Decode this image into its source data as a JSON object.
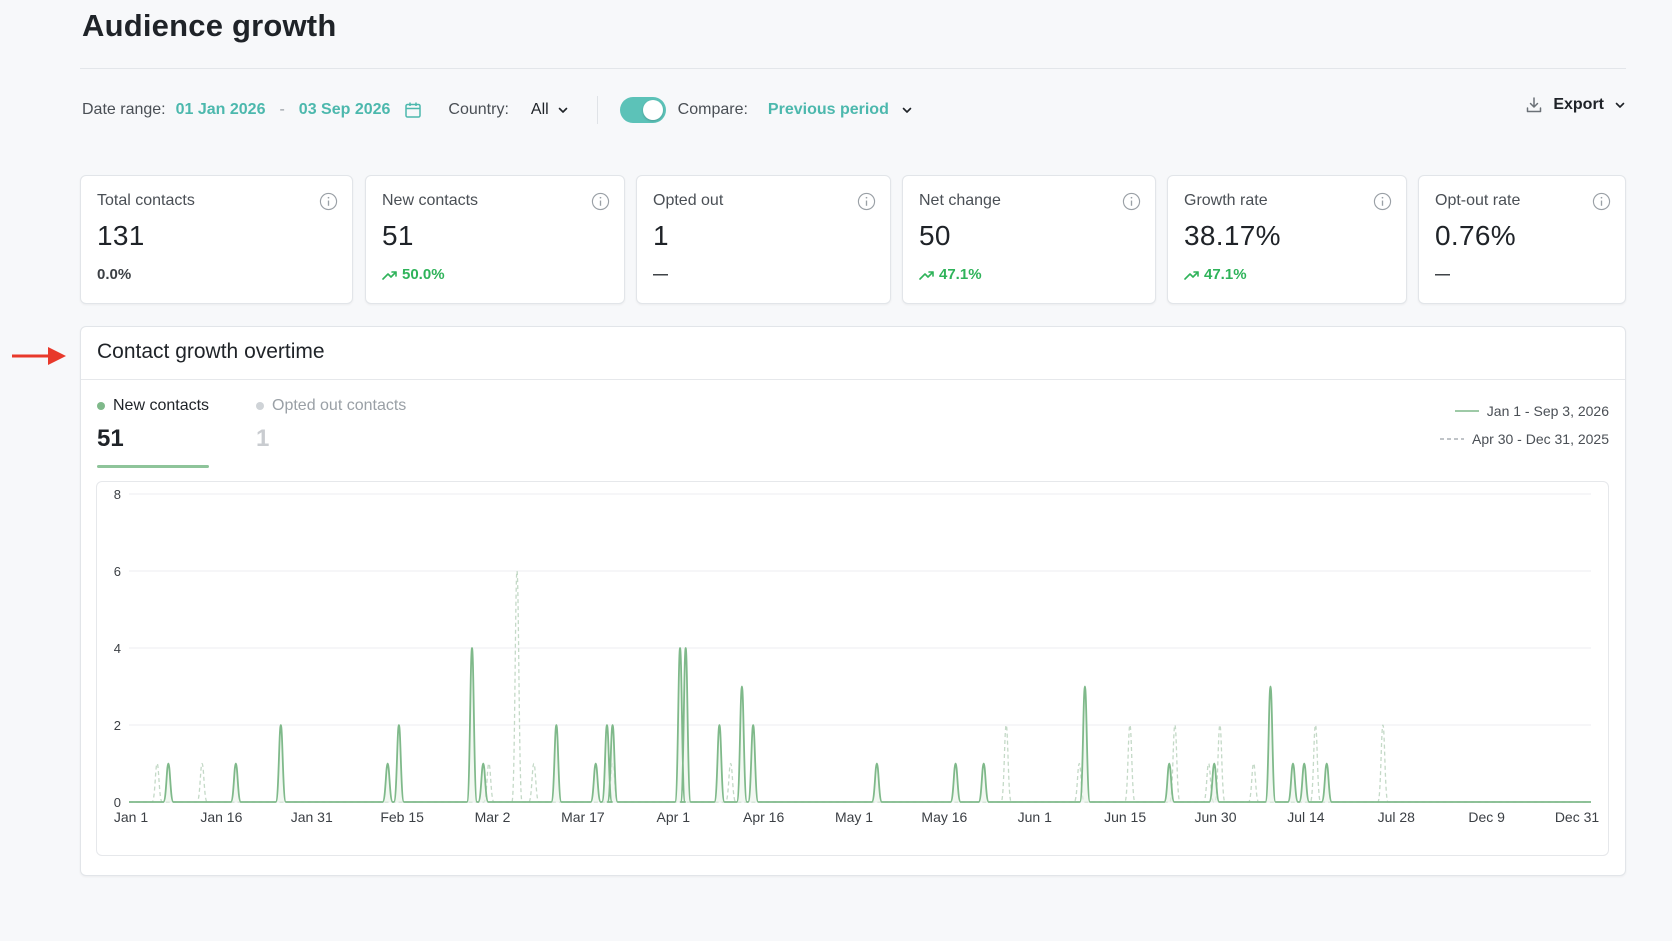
{
  "page": {
    "title": "Audience growth"
  },
  "filters": {
    "date_range_label": "Date range:",
    "start_date": "01 Jan 2026",
    "separator": "-",
    "end_date": "03 Sep 2026",
    "country_label": "Country:",
    "country_value": "All",
    "compare_enabled": true,
    "compare_label": "Compare:",
    "compare_value": "Previous period",
    "export_label": "Export"
  },
  "stats": [
    {
      "label": "Total contacts",
      "value": "131",
      "delta": "0.0%",
      "trend": "neutral"
    },
    {
      "label": "New contacts",
      "value": "51",
      "delta": "50.0%",
      "trend": "up"
    },
    {
      "label": "Opted out",
      "value": "1",
      "delta": "—",
      "trend": "none"
    },
    {
      "label": "Net change",
      "value": "50",
      "delta": "47.1%",
      "trend": "up"
    },
    {
      "label": "Growth rate",
      "value": "38.17%",
      "delta": "47.1%",
      "trend": "up"
    },
    {
      "label": "Opt-out rate",
      "value": "0.76%",
      "delta": "—",
      "trend": "none"
    }
  ],
  "chart_section": {
    "title": "Contact growth overtime",
    "tabs": [
      {
        "label": "New contacts",
        "value": "51",
        "active": true
      },
      {
        "label": "Opted out contacts",
        "value": "1",
        "active": false
      }
    ],
    "period_legend": {
      "current": "Jan 1 - Sep 3, 2026",
      "previous": "Apr 30 - Dec 31, 2025"
    }
  },
  "colors": {
    "accent": "#4cb8ad",
    "toggle": "#5cc2b8",
    "up": "#2fb35a",
    "current_line": "#7fb98a",
    "previous_line": "#c4d9c7",
    "arrow": "#e8392b"
  },
  "icons": {
    "calendar": "calendar-icon",
    "chevron": "chevron-down-icon",
    "download": "download-icon",
    "info": "info-icon",
    "trend_up": "trend-up-icon",
    "annotation_arrow": "arrow-right-icon"
  },
  "chart_data": {
    "type": "line",
    "ylim": [
      0,
      8
    ],
    "yticks": [
      0,
      2,
      4,
      6,
      8
    ],
    "xticks": [
      "Jan 1",
      "Jan 16",
      "Jan 31",
      "Feb 15",
      "Mar 2",
      "Mar 17",
      "Apr 1",
      "Apr 16",
      "May 1",
      "May 16",
      "Jun 1",
      "Jun 15",
      "Jun 30",
      "Jul 14",
      "Jul 28",
      "Dec 9",
      "Dec 31"
    ],
    "x_domain": [
      0,
      260
    ],
    "grid": true,
    "series": [
      {
        "name": "Jan 1 - Sep 3, 2026",
        "style": "solid",
        "peaks": [
          [
            7,
            1
          ],
          [
            19,
            1
          ],
          [
            27,
            2
          ],
          [
            46,
            1
          ],
          [
            48,
            2
          ],
          [
            61,
            4
          ],
          [
            63,
            1
          ],
          [
            76,
            2
          ],
          [
            83,
            1
          ],
          [
            85,
            2
          ],
          [
            86,
            2
          ],
          [
            98,
            4
          ],
          [
            99,
            4
          ],
          [
            105,
            2
          ],
          [
            109,
            3
          ],
          [
            111,
            2
          ],
          [
            133,
            1
          ],
          [
            147,
            1
          ],
          [
            152,
            1
          ],
          [
            170,
            3
          ],
          [
            185,
            1
          ],
          [
            193,
            1
          ],
          [
            203,
            3
          ],
          [
            207,
            1
          ],
          [
            209,
            1
          ],
          [
            213,
            1
          ]
        ]
      },
      {
        "name": "Apr 30 - Dec 31, 2025",
        "style": "dashed",
        "peaks": [
          [
            5,
            1
          ],
          [
            13,
            1
          ],
          [
            64,
            1
          ],
          [
            69,
            6
          ],
          [
            72,
            1
          ],
          [
            86,
            1
          ],
          [
            107,
            1
          ],
          [
            156,
            2
          ],
          [
            169,
            1
          ],
          [
            178,
            2
          ],
          [
            186,
            2
          ],
          [
            192,
            1
          ],
          [
            194,
            2
          ],
          [
            200,
            1
          ],
          [
            211,
            2
          ],
          [
            223,
            2
          ]
        ]
      }
    ]
  }
}
